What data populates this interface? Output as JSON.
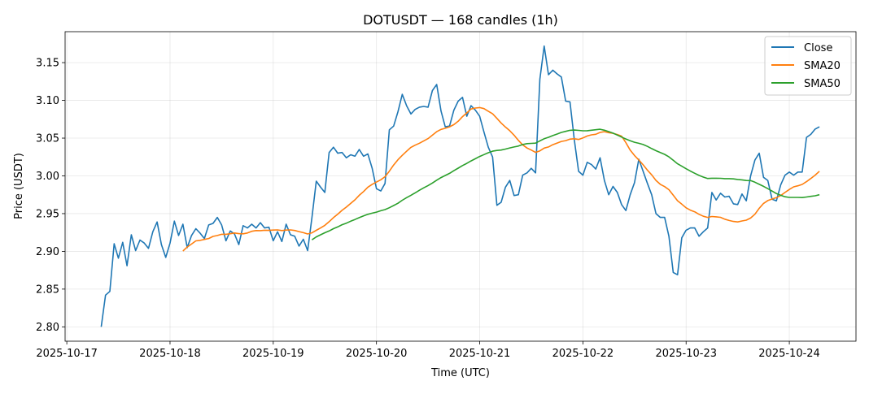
{
  "chart_data": {
    "type": "line",
    "title": "DOTUSDT — 168 candles (1h)",
    "xlabel": "Time (UTC)",
    "ylabel": "Price (USDT)",
    "x_unit": "hours since 2025-10-17 00:00 UTC",
    "xlim": [
      -0.4,
      183.5
    ],
    "ylim": [
      2.781,
      3.191
    ],
    "first_candle_hour": 8,
    "candle_interval_hours": 1,
    "grid": true,
    "legend_position": "top-right",
    "x_ticks": [
      {
        "value": 0,
        "label": "2025-10-17"
      },
      {
        "value": 24,
        "label": "2025-10-18"
      },
      {
        "value": 48,
        "label": "2025-10-19"
      },
      {
        "value": 72,
        "label": "2025-10-20"
      },
      {
        "value": 96,
        "label": "2025-10-21"
      },
      {
        "value": 120,
        "label": "2025-10-22"
      },
      {
        "value": 144,
        "label": "2025-10-23"
      },
      {
        "value": 168,
        "label": "2025-10-24"
      }
    ],
    "y_ticks": [
      {
        "value": 2.8,
        "label": "2.80"
      },
      {
        "value": 2.85,
        "label": "2.85"
      },
      {
        "value": 2.9,
        "label": "2.90"
      },
      {
        "value": 2.95,
        "label": "2.95"
      },
      {
        "value": 3.0,
        "label": "3.00"
      },
      {
        "value": 3.05,
        "label": "3.05"
      },
      {
        "value": 3.1,
        "label": "3.10"
      },
      {
        "value": 3.15,
        "label": "3.15"
      }
    ],
    "series": [
      {
        "name": "Close",
        "color": "#1f77b4",
        "values": [
          2.8,
          2.842,
          2.847,
          2.91,
          2.891,
          2.912,
          2.881,
          2.922,
          2.901,
          2.915,
          2.911,
          2.904,
          2.926,
          2.939,
          2.909,
          2.892,
          2.911,
          2.94,
          2.921,
          2.936,
          2.905,
          2.921,
          2.93,
          2.924,
          2.917,
          2.935,
          2.937,
          2.945,
          2.935,
          2.914,
          2.927,
          2.923,
          2.909,
          2.934,
          2.931,
          2.936,
          2.931,
          2.938,
          2.931,
          2.932,
          2.914,
          2.926,
          2.913,
          2.936,
          2.922,
          2.92,
          2.907,
          2.916,
          2.901,
          2.945,
          2.993,
          2.985,
          2.978,
          3.031,
          3.038,
          3.03,
          3.031,
          3.024,
          3.028,
          3.026,
          3.035,
          3.026,
          3.029,
          3.01,
          2.983,
          2.98,
          2.99,
          3.061,
          3.066,
          3.085,
          3.108,
          3.093,
          3.082,
          3.088,
          3.091,
          3.092,
          3.091,
          3.113,
          3.121,
          3.086,
          3.065,
          3.066,
          3.087,
          3.099,
          3.104,
          3.079,
          3.093,
          3.087,
          3.079,
          3.058,
          3.038,
          3.025,
          2.961,
          2.965,
          2.985,
          2.994,
          2.974,
          2.975,
          3.001,
          3.004,
          3.01,
          3.004,
          3.128,
          3.172,
          3.134,
          3.14,
          3.135,
          3.131,
          3.099,
          3.098,
          3.048,
          3.006,
          3.001,
          3.018,
          3.015,
          3.009,
          3.024,
          2.994,
          2.975,
          2.986,
          2.978,
          2.962,
          2.954,
          2.975,
          2.991,
          3.022,
          3.006,
          2.99,
          2.975,
          2.95,
          2.945,
          2.945,
          2.92,
          2.872,
          2.869,
          2.918,
          2.928,
          2.931,
          2.931,
          2.92,
          2.926,
          2.931,
          2.978,
          2.968,
          2.977,
          2.972,
          2.973,
          2.963,
          2.962,
          2.976,
          2.967,
          3.0,
          3.021,
          3.03,
          2.998,
          2.994,
          2.969,
          2.967,
          2.988,
          3.001,
          3.005,
          3.001,
          3.005,
          3.005,
          3.051,
          3.055,
          3.062,
          3.065
        ]
      },
      {
        "name": "SMA20",
        "color": "#ff7f0e",
        "window": 20,
        "source": "Close"
      },
      {
        "name": "SMA50",
        "color": "#2ca02c",
        "window": 50,
        "source": "Close"
      }
    ]
  }
}
